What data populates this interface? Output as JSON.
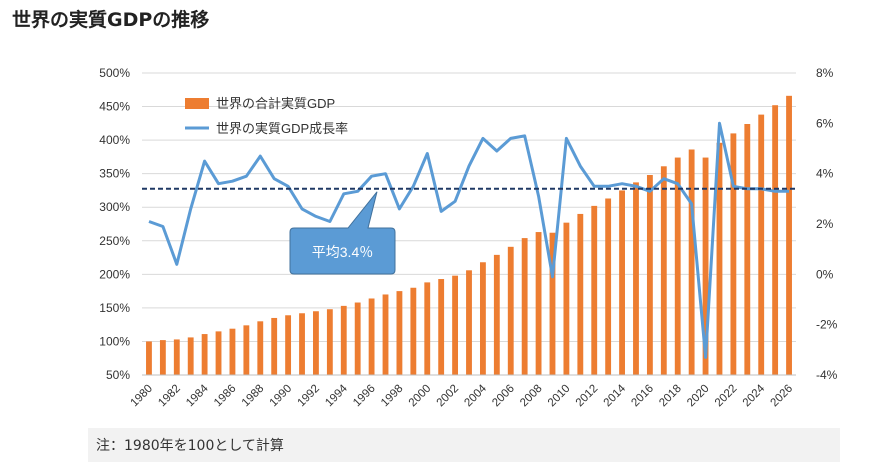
{
  "title": "世界の実質GDPの推移",
  "note": "注：1980年を100として計算",
  "callout_label": "平均3.4％",
  "colors": {
    "bar": "#ED7D31",
    "line": "#5B9BD5",
    "avg_line": "#1F3864",
    "callout_fill": "#5B9BD5",
    "grid": "#D9D9D9",
    "axis_text": "#333333"
  },
  "chart_data": {
    "type": "bar+line",
    "categories": [
      "1980",
      "1981",
      "1982",
      "1983",
      "1984",
      "1985",
      "1986",
      "1987",
      "1988",
      "1989",
      "1990",
      "1991",
      "1992",
      "1993",
      "1994",
      "1995",
      "1996",
      "1997",
      "1998",
      "1999",
      "2000",
      "2001",
      "2002",
      "2003",
      "2004",
      "2005",
      "2006",
      "2007",
      "2008",
      "2009",
      "2010",
      "2011",
      "2012",
      "2013",
      "2014",
      "2015",
      "2016",
      "2017",
      "2018",
      "2019",
      "2020",
      "2021",
      "2022",
      "2023",
      "2024",
      "2025",
      "2026"
    ],
    "x_tick_labels": [
      "1980",
      "1982",
      "1984",
      "1986",
      "1988",
      "1990",
      "1992",
      "1994",
      "1996",
      "1998",
      "2000",
      "2002",
      "2004",
      "2006",
      "2008",
      "2010",
      "2012",
      "2014",
      "2016",
      "2018",
      "2020",
      "2022",
      "2024",
      "2026"
    ],
    "series": [
      {
        "name": "世界の合計実質GDP",
        "type": "bar",
        "axis": "left",
        "values": [
          100,
          102,
          103,
          106,
          111,
          115,
          119,
          124,
          130,
          135,
          139,
          142,
          145,
          148,
          153,
          158,
          164,
          170,
          175,
          180,
          188,
          193,
          198,
          206,
          218,
          229,
          241,
          254,
          263,
          262,
          277,
          290,
          302,
          313,
          325,
          337,
          348,
          361,
          374,
          386,
          374,
          396,
          410,
          424,
          438,
          452,
          466
        ]
      },
      {
        "name": "世界の実質GDP成長率",
        "type": "line",
        "axis": "right",
        "values": [
          2.1,
          1.9,
          0.4,
          2.6,
          4.5,
          3.6,
          3.7,
          3.9,
          4.7,
          3.8,
          3.5,
          2.6,
          2.3,
          2.1,
          3.2,
          3.3,
          3.9,
          4.0,
          2.6,
          3.5,
          4.8,
          2.5,
          2.9,
          4.3,
          5.4,
          4.9,
          5.4,
          5.5,
          3.1,
          -0.1,
          5.4,
          4.3,
          3.5,
          3.5,
          3.6,
          3.5,
          3.3,
          3.8,
          3.6,
          2.8,
          -3.3,
          6.0,
          3.5,
          3.4,
          3.4,
          3.3,
          3.3
        ]
      }
    ],
    "average_line": {
      "value": 3.4,
      "axis": "right"
    },
    "y_left": {
      "ylim": [
        50,
        500
      ],
      "ticks": [
        "50%",
        "100%",
        "150%",
        "200%",
        "250%",
        "300%",
        "350%",
        "400%",
        "450%",
        "500%"
      ]
    },
    "y_right": {
      "ylim": [
        -4,
        8
      ],
      "ticks": [
        "-4%",
        "-2%",
        "0%",
        "2%",
        "4%",
        "6%",
        "8%"
      ]
    },
    "grid": true,
    "legend": "top-left"
  }
}
